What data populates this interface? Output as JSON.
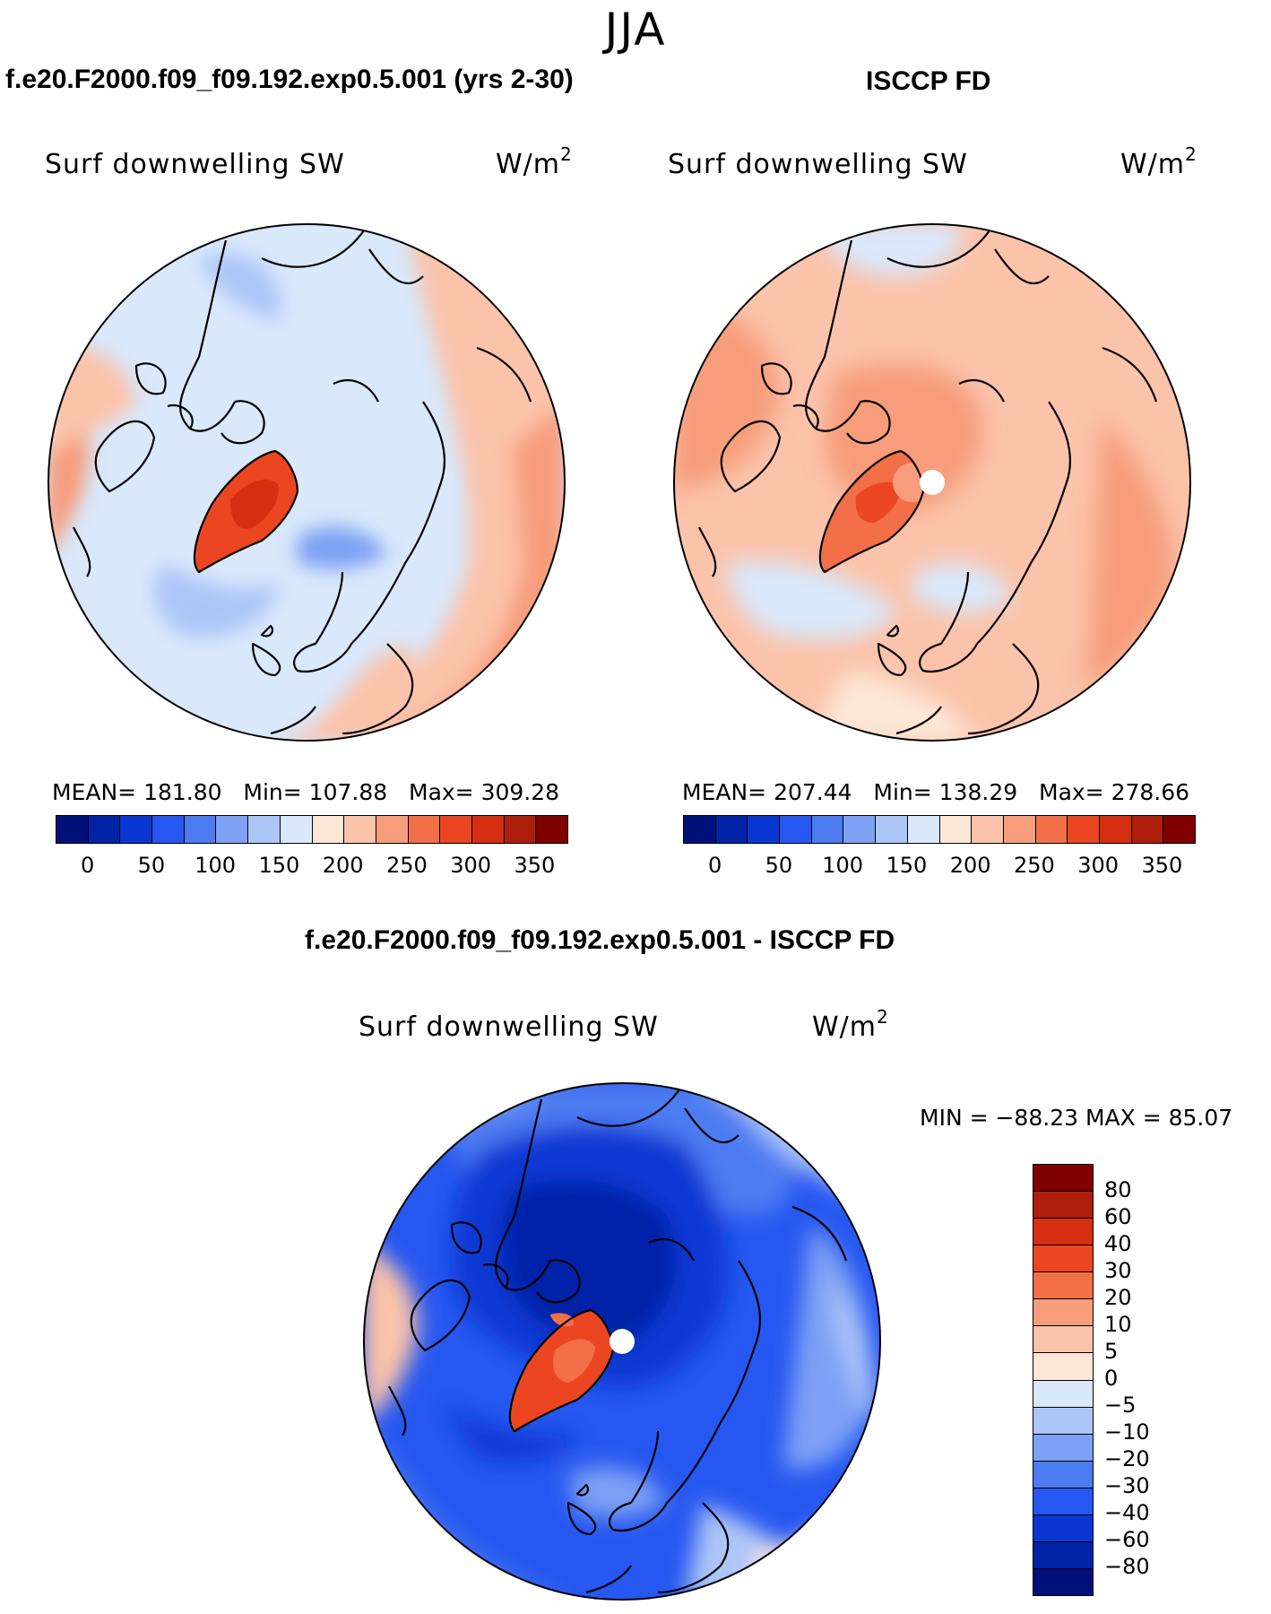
{
  "season": "JJA",
  "panels": {
    "model": {
      "title": "f.e20.F2000.f09_f09.192.exp0.5.001 (yrs 2-30)",
      "variable": "Surf downwelling SW",
      "units_base": "W/m",
      "units_exp": "2",
      "mean_label": "MEAN=",
      "mean_value": "181.80",
      "min_label": "Min=",
      "min_value": "107.88",
      "max_label": "Max=",
      "max_value": "309.28"
    },
    "obs": {
      "title": "ISCCP FD",
      "variable": "Surf downwelling SW",
      "units_base": "W/m",
      "units_exp": "2",
      "mean_label": "MEAN=",
      "mean_value": "207.44",
      "min_label": "Min=",
      "min_value": "138.29",
      "max_label": "Max=",
      "max_value": "278.66"
    },
    "diff": {
      "title": "f.e20.F2000.f09_f09.192.exp0.5.001 - ISCCP FD",
      "variable": "Surf downwelling SW",
      "units_base": "W/m",
      "units_exp": "2",
      "minmax": "MIN = −88.23 MAX =   85.07"
    }
  },
  "colorbars": {
    "absolute": {
      "colors": [
        "#00107a",
        "#0023a8",
        "#0a37d3",
        "#2657f0",
        "#4d7bf2",
        "#7ea1f5",
        "#adc6f8",
        "#d9e8fb",
        "#fde7d6",
        "#fbc3aa",
        "#f79d7b",
        "#f26f48",
        "#eb4621",
        "#d52e10",
        "#ad1f0a",
        "#800000"
      ],
      "tick_labels": [
        "0",
        "50",
        "100",
        "150",
        "200",
        "250",
        "300",
        "350"
      ]
    },
    "difference": {
      "colors": [
        "#800000",
        "#ad1f0a",
        "#d52e10",
        "#eb4621",
        "#f26f48",
        "#f79d7b",
        "#fbc3aa",
        "#fde7d6",
        "#d9e8fb",
        "#adc6f8",
        "#7ea1f5",
        "#4d7bf2",
        "#2657f0",
        "#0a37d3",
        "#0023a8",
        "#00107a"
      ],
      "tick_labels": [
        "80",
        "60",
        "40",
        "30",
        "20",
        "10",
        "5",
        "0",
        "−5",
        "−10",
        "−20",
        "−30",
        "−40",
        "−60",
        "−80"
      ]
    }
  },
  "chart_data": [
    {
      "type": "heatmap",
      "projection": "north polar stereographic",
      "title": "f.e20.F2000.f09_f09.192.exp0.5.001 (yrs 2-30)",
      "variable": "Surf downwelling SW",
      "units": "W/m2",
      "levels": [
        0,
        25,
        50,
        75,
        100,
        125,
        150,
        175,
        200,
        225,
        250,
        275,
        300,
        325,
        350
      ],
      "mean": 181.8,
      "min": 107.88,
      "max": 309.28
    },
    {
      "type": "heatmap",
      "projection": "north polar stereographic",
      "title": "ISCCP FD",
      "variable": "Surf downwelling SW",
      "units": "W/m2",
      "levels": [
        0,
        25,
        50,
        75,
        100,
        125,
        150,
        175,
        200,
        225,
        250,
        275,
        300,
        325,
        350
      ],
      "mean": 207.44,
      "min": 138.29,
      "max": 278.66
    },
    {
      "type": "heatmap",
      "projection": "north polar stereographic",
      "title": "f.e20.F2000.f09_f09.192.exp0.5.001 - ISCCP FD",
      "variable": "Surf downwelling SW",
      "units": "W/m2",
      "levels": [
        -80,
        -60,
        -40,
        -30,
        -20,
        -10,
        -5,
        0,
        5,
        10,
        20,
        30,
        40,
        60,
        80
      ],
      "min": -88.23,
      "max": 85.07
    }
  ]
}
